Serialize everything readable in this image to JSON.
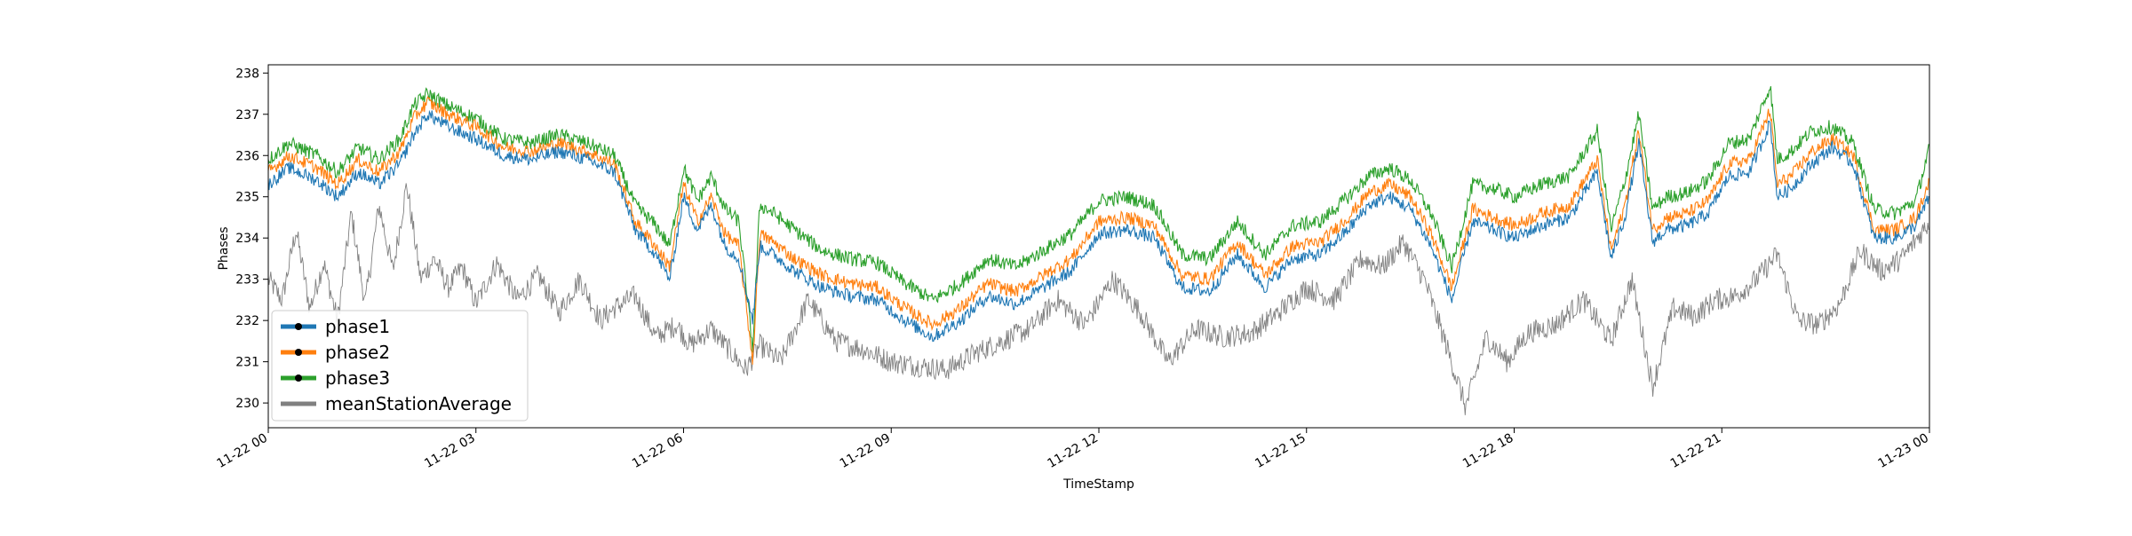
{
  "chart_data": {
    "type": "line",
    "xlabel": "TimeStamp",
    "ylabel": "Phases",
    "x_range": [
      "2019-11-22 00:00",
      "2019-11-23 00:00"
    ],
    "ylim": [
      229.4,
      238.2
    ],
    "x_ticks": [
      {
        "label": "11-22 00",
        "hour": 0
      },
      {
        "label": "11-22 03",
        "hour": 3
      },
      {
        "label": "11-22 06",
        "hour": 6
      },
      {
        "label": "11-22 09",
        "hour": 9
      },
      {
        "label": "11-22 12",
        "hour": 12
      },
      {
        "label": "11-22 15",
        "hour": 15
      },
      {
        "label": "11-22 18",
        "hour": 18
      },
      {
        "label": "11-22 21",
        "hour": 21
      },
      {
        "label": "11-23 00",
        "hour": 24
      }
    ],
    "y_ticks": [
      230,
      231,
      232,
      233,
      234,
      235,
      236,
      237,
      238
    ],
    "grid": false,
    "legend_position": "lower-left",
    "series": [
      {
        "name": "phase1",
        "color": "#1f77b4",
        "marker": "dot",
        "hour_offset": 0,
        "x": [
          0,
          0.3,
          0.7,
          1.0,
          1.3,
          1.6,
          1.9,
          2.1,
          2.3,
          2.6,
          3.0,
          3.4,
          3.8,
          4.2,
          4.6,
          5.0,
          5.3,
          5.6,
          5.8,
          6.0,
          6.2,
          6.4,
          6.6,
          6.8,
          7.0,
          7.1,
          7.3,
          7.6,
          8.0,
          8.4,
          8.8,
          9.2,
          9.6,
          10.0,
          10.4,
          10.8,
          11.2,
          11.6,
          12.0,
          12.4,
          12.8,
          13.2,
          13.6,
          14.0,
          14.4,
          14.8,
          15.2,
          15.6,
          15.9,
          16.2,
          16.5,
          16.8,
          17.1,
          17.4,
          17.7,
          18.0,
          18.4,
          18.8,
          19.2,
          19.4,
          19.6,
          19.8,
          20.0,
          20.2,
          20.5,
          20.8,
          21.1,
          21.4,
          21.7,
          21.8,
          22.0,
          22.3,
          22.6,
          22.9,
          23.2,
          23.5,
          23.8,
          24.0
        ],
        "y": [
          235.3,
          235.7,
          235.4,
          235.0,
          235.6,
          235.3,
          235.8,
          236.5,
          237.0,
          236.7,
          236.4,
          236.0,
          235.9,
          236.1,
          235.9,
          235.6,
          234.2,
          233.6,
          233.0,
          235.0,
          234.2,
          234.8,
          233.8,
          233.5,
          232.0,
          233.8,
          233.6,
          233.2,
          232.8,
          232.6,
          232.5,
          232.0,
          231.6,
          232.0,
          232.6,
          232.4,
          232.8,
          233.2,
          234.1,
          234.2,
          234.0,
          232.8,
          232.7,
          233.6,
          232.8,
          233.5,
          233.6,
          234.2,
          234.8,
          235.0,
          234.7,
          233.8,
          232.5,
          234.4,
          234.2,
          234.0,
          234.3,
          234.5,
          235.6,
          233.5,
          234.5,
          236.3,
          233.9,
          234.2,
          234.3,
          234.6,
          235.5,
          235.6,
          236.8,
          235.0,
          235.2,
          235.8,
          236.2,
          235.8,
          234.0,
          234.0,
          234.3,
          235.0
        ]
      },
      {
        "name": "phase2",
        "color": "#ff7f0e",
        "marker": "dot",
        "hour_offset": 0,
        "x": [
          0,
          0.3,
          0.7,
          1.0,
          1.3,
          1.6,
          1.9,
          2.1,
          2.3,
          2.6,
          3.0,
          3.4,
          3.8,
          4.2,
          4.6,
          5.0,
          5.3,
          5.6,
          5.8,
          6.0,
          6.2,
          6.4,
          6.6,
          6.8,
          7.0,
          7.1,
          7.3,
          7.6,
          8.0,
          8.4,
          8.8,
          9.2,
          9.6,
          10.0,
          10.4,
          10.8,
          11.2,
          11.6,
          12.0,
          12.4,
          12.8,
          13.2,
          13.6,
          14.0,
          14.4,
          14.8,
          15.2,
          15.6,
          15.9,
          16.2,
          16.5,
          16.8,
          17.1,
          17.4,
          17.7,
          18.0,
          18.4,
          18.8,
          19.2,
          19.4,
          19.6,
          19.8,
          20.0,
          20.2,
          20.5,
          20.8,
          21.1,
          21.4,
          21.7,
          21.8,
          22.0,
          22.3,
          22.6,
          22.9,
          23.2,
          23.5,
          23.8,
          24.0
        ],
        "y": [
          235.6,
          236.0,
          235.7,
          235.3,
          235.9,
          235.6,
          236.1,
          236.9,
          237.3,
          237.0,
          236.7,
          236.2,
          236.1,
          236.3,
          236.1,
          235.8,
          234.4,
          233.8,
          233.3,
          235.3,
          234.4,
          235.0,
          234.1,
          233.8,
          231.0,
          234.1,
          233.9,
          233.5,
          233.1,
          232.9,
          232.8,
          232.3,
          231.9,
          232.3,
          232.9,
          232.7,
          233.1,
          233.5,
          234.4,
          234.5,
          234.3,
          233.1,
          233.0,
          233.9,
          233.1,
          233.8,
          233.9,
          234.5,
          235.1,
          235.3,
          235.0,
          234.1,
          232.8,
          234.7,
          234.5,
          234.3,
          234.6,
          234.8,
          235.9,
          233.7,
          234.8,
          236.6,
          234.2,
          234.5,
          234.6,
          234.9,
          235.8,
          235.9,
          237.1,
          235.3,
          235.5,
          236.1,
          236.4,
          236.0,
          234.2,
          234.2,
          234.5,
          235.4
        ]
      },
      {
        "name": "phase3",
        "color": "#2ca02c",
        "marker": "dot",
        "hour_offset": 0,
        "x": [
          0,
          0.3,
          0.7,
          1.0,
          1.3,
          1.6,
          1.9,
          2.1,
          2.3,
          2.6,
          3.0,
          3.4,
          3.8,
          4.2,
          4.6,
          5.0,
          5.3,
          5.6,
          5.8,
          6.0,
          6.2,
          6.4,
          6.6,
          6.8,
          7.0,
          7.1,
          7.3,
          7.6,
          8.0,
          8.4,
          8.8,
          9.2,
          9.6,
          10.0,
          10.4,
          10.8,
          11.2,
          11.6,
          12.0,
          12.4,
          12.8,
          13.2,
          13.6,
          14.0,
          14.4,
          14.8,
          15.2,
          15.6,
          15.9,
          16.2,
          16.5,
          16.8,
          17.1,
          17.4,
          17.7,
          18.0,
          18.4,
          18.8,
          19.2,
          19.4,
          19.6,
          19.8,
          20.0,
          20.2,
          20.5,
          20.8,
          21.1,
          21.4,
          21.7,
          21.8,
          22.0,
          22.3,
          22.6,
          22.9,
          23.2,
          23.5,
          23.8,
          24.0
        ],
        "y": [
          235.9,
          236.3,
          236.0,
          235.6,
          236.2,
          235.9,
          236.4,
          237.2,
          237.5,
          237.2,
          236.9,
          236.4,
          236.3,
          236.5,
          236.3,
          236.0,
          234.8,
          234.3,
          233.8,
          235.7,
          234.9,
          235.5,
          234.7,
          234.4,
          231.3,
          234.8,
          234.6,
          234.2,
          233.7,
          233.5,
          233.4,
          232.9,
          232.5,
          232.9,
          233.5,
          233.3,
          233.7,
          234.1,
          234.9,
          235.0,
          234.8,
          233.6,
          233.5,
          234.4,
          233.6,
          234.3,
          234.4,
          235.0,
          235.5,
          235.7,
          235.4,
          234.6,
          233.3,
          235.3,
          235.2,
          235.0,
          235.3,
          235.5,
          236.6,
          234.2,
          235.4,
          237.0,
          234.7,
          235.0,
          235.1,
          235.4,
          236.3,
          236.4,
          237.7,
          235.9,
          236.1,
          236.6,
          236.7,
          236.3,
          234.7,
          234.6,
          234.9,
          236.2
        ]
      },
      {
        "name": "meanStationAverage",
        "color": "#808080",
        "marker": "none",
        "hour_offset": 0,
        "x": [
          0,
          0.2,
          0.4,
          0.6,
          0.8,
          1.0,
          1.2,
          1.4,
          1.6,
          1.8,
          2.0,
          2.2,
          2.4,
          2.6,
          2.8,
          3.0,
          3.3,
          3.6,
          3.9,
          4.2,
          4.5,
          4.8,
          5.0,
          5.3,
          5.6,
          5.9,
          6.1,
          6.4,
          6.7,
          6.9,
          7.1,
          7.4,
          7.8,
          8.2,
          8.6,
          9.0,
          9.4,
          9.8,
          10.2,
          10.6,
          11.0,
          11.4,
          11.8,
          12.2,
          12.6,
          13.0,
          13.4,
          13.8,
          14.2,
          14.6,
          15.0,
          15.4,
          15.8,
          16.1,
          16.4,
          16.7,
          17.0,
          17.3,
          17.6,
          17.9,
          18.2,
          18.6,
          19.0,
          19.4,
          19.7,
          20.0,
          20.3,
          20.6,
          20.9,
          21.2,
          21.5,
          21.8,
          22.1,
          22.4,
          22.7,
          23.0,
          23.3,
          23.6,
          24.0
        ],
        "y": [
          233.0,
          232.5,
          234.2,
          232.3,
          233.4,
          232.0,
          234.6,
          232.4,
          234.8,
          233.2,
          235.3,
          233.0,
          233.5,
          232.8,
          233.3,
          232.4,
          233.4,
          232.5,
          233.1,
          232.2,
          233.0,
          232.0,
          232.3,
          232.6,
          231.6,
          231.9,
          231.4,
          231.8,
          231.2,
          230.8,
          231.4,
          231.0,
          232.5,
          231.5,
          231.3,
          231.0,
          230.9,
          230.8,
          231.2,
          231.5,
          231.8,
          232.5,
          231.9,
          233.0,
          232.2,
          231.0,
          231.8,
          231.6,
          231.7,
          232.2,
          232.8,
          232.5,
          233.5,
          233.3,
          233.9,
          233.0,
          231.5,
          229.9,
          231.6,
          231.0,
          231.7,
          231.9,
          232.5,
          231.5,
          233.0,
          230.4,
          232.3,
          232.1,
          232.5,
          232.6,
          233.0,
          233.6,
          232.0,
          231.9,
          232.4,
          233.7,
          233.2,
          233.5,
          234.4
        ]
      }
    ]
  }
}
